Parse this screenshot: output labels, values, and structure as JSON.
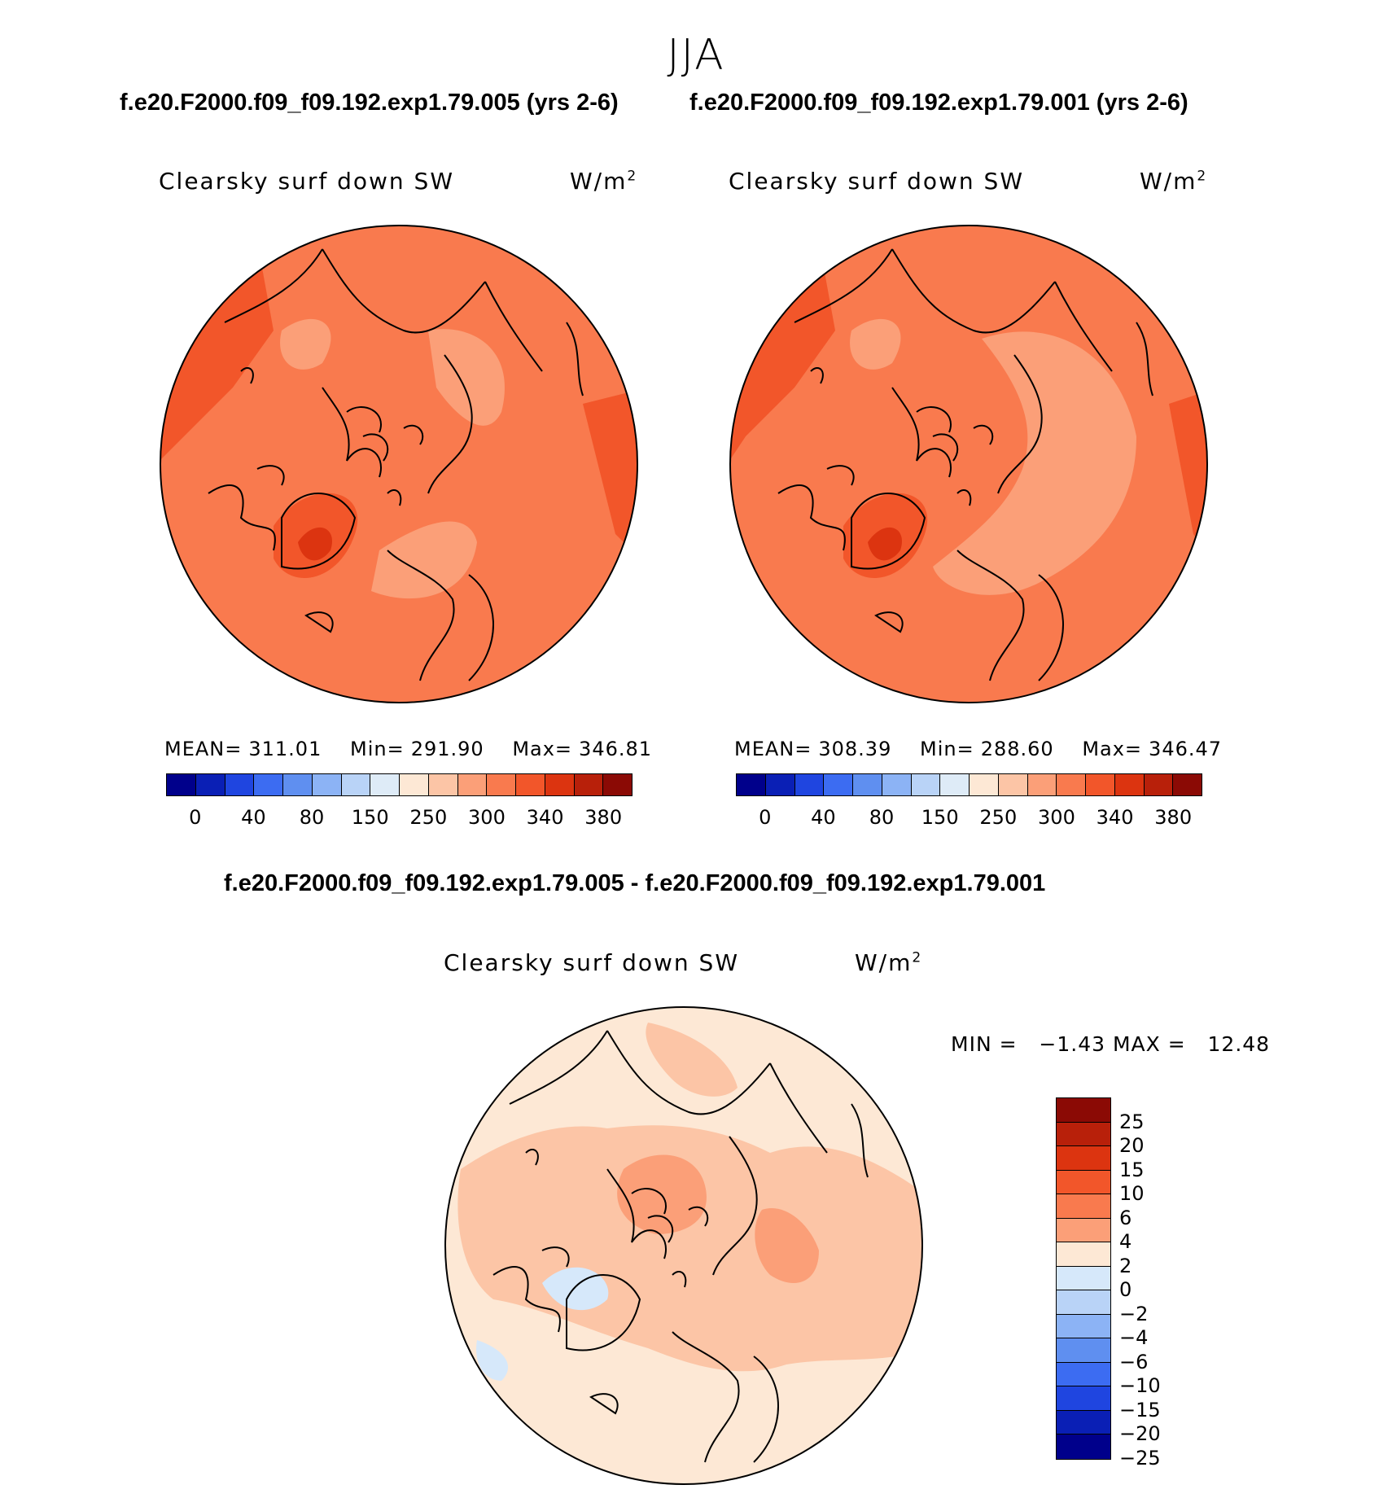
{
  "season": "JJA",
  "top_titles": {
    "left": "f.e20.F2000.f09_f09.192.exp1.79.005 (yrs 2-6)",
    "right": "f.e20.F2000.f09_f09.192.exp1.79.001 (yrs 2-6)"
  },
  "diff_title": "f.e20.F2000.f09_f09.192.exp1.79.005 - f.e20.F2000.f09_f09.192.exp1.79.001",
  "panels": [
    {
      "variable": "Clearsky surf down SW",
      "unit": "W/m",
      "unit_sup": "2",
      "mean_label": "MEAN=",
      "mean": "311.01",
      "min_label": "Min=",
      "min": "291.90",
      "max_label": "Max=",
      "max": "346.81"
    },
    {
      "variable": "Clearsky surf down SW",
      "unit": "W/m",
      "unit_sup": "2",
      "mean_label": "MEAN=",
      "mean": "308.39",
      "min_label": "Min=",
      "min": "288.60",
      "max_label": "Max=",
      "max": "346.47"
    }
  ],
  "diff_panel": {
    "variable": "Clearsky surf down SW",
    "unit": "W/m",
    "unit_sup": "2",
    "min_label": "MIN =",
    "min": "−1.43",
    "max_label": "MAX =",
    "max": "12.48"
  },
  "abs_colorbar": {
    "colors": [
      "#00008b",
      "#0a1fb5",
      "#1f45e0",
      "#3c6cf2",
      "#5f8ff0",
      "#8cb3f5",
      "#b9d3f7",
      "#deebf7",
      "#fde8d5",
      "#fcc5a6",
      "#fb9f78",
      "#f97a4e",
      "#f2562a",
      "#dc3410",
      "#b8200a",
      "#8b0a05"
    ],
    "ticks": [
      "0",
      "40",
      "80",
      "150",
      "250",
      "300",
      "340",
      "380"
    ]
  },
  "diff_colorbar": {
    "colors": [
      "#8b0a05",
      "#b8200a",
      "#dc3410",
      "#f2562a",
      "#f97a4e",
      "#fb9f78",
      "#fde8d5",
      "#d6e8fa",
      "#b9d3f7",
      "#8cb3f5",
      "#5f8ff0",
      "#3c6cf2",
      "#1f45e0",
      "#0a1fb5",
      "#00008b"
    ],
    "ticks": [
      "25",
      "20",
      "15",
      "10",
      "6",
      "4",
      "2",
      "0",
      "−2",
      "−4",
      "−6",
      "−10",
      "−15",
      "−20",
      "−25"
    ]
  }
}
